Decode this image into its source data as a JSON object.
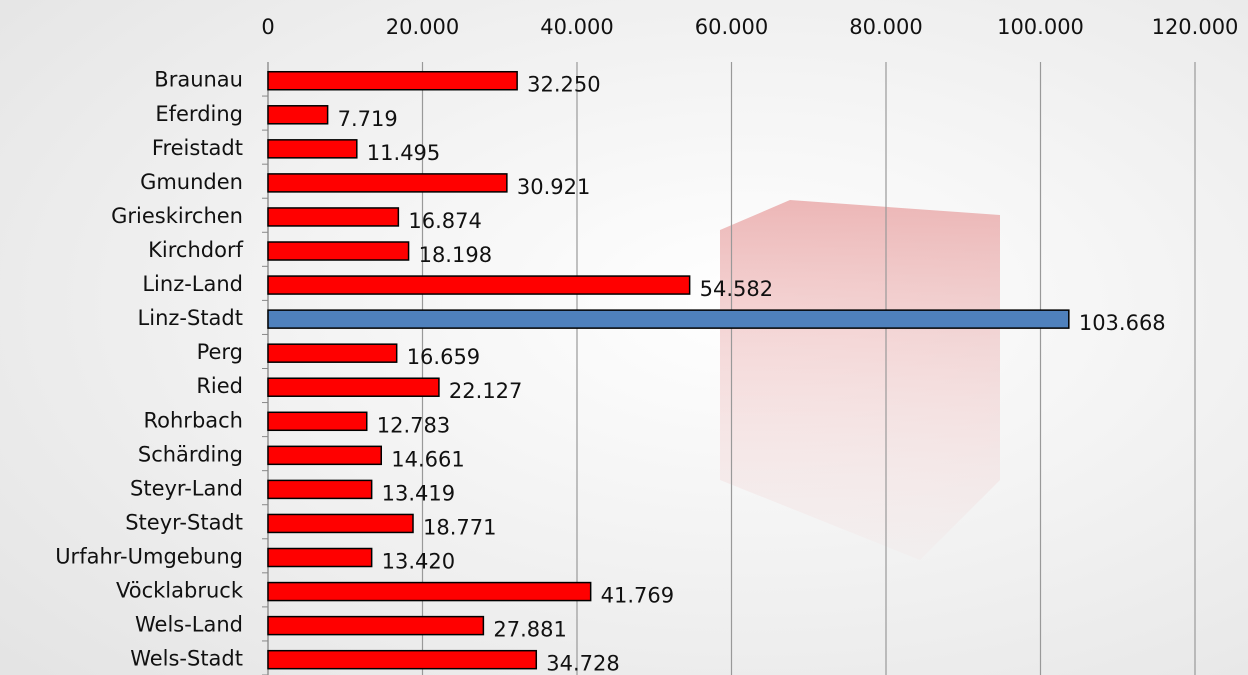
{
  "chart_data": {
    "type": "bar",
    "orientation": "horizontal",
    "categories": [
      "Braunau",
      "Eferding",
      "Freistadt",
      "Gmunden",
      "Grieskirchen",
      "Kirchdorf",
      "Linz-Land",
      "Linz-Stadt",
      "Perg",
      "Ried",
      "Rohrbach",
      "Schärding",
      "Steyr-Land",
      "Steyr-Stadt",
      "Urfahr-Umgebung",
      "Vöcklabruck",
      "Wels-Land",
      "Wels-Stadt"
    ],
    "values": [
      32250,
      7719,
      11495,
      30921,
      16874,
      18198,
      54582,
      103668,
      16659,
      22127,
      12783,
      14661,
      13419,
      18771,
      13420,
      41769,
      27881,
      34728
    ],
    "value_labels": [
      "32.250",
      "7.719",
      "11.495",
      "30.921",
      "16.874",
      "18.198",
      "54.582",
      "103.668",
      "16.659",
      "22.127",
      "12.783",
      "14.661",
      "13.419",
      "18.771",
      "13.420",
      "41.769",
      "27.881",
      "34.728"
    ],
    "colors": [
      "#ff0000",
      "#ff0000",
      "#ff0000",
      "#ff0000",
      "#ff0000",
      "#ff0000",
      "#ff0000",
      "#4f81bd",
      "#ff0000",
      "#ff0000",
      "#ff0000",
      "#ff0000",
      "#ff0000",
      "#ff0000",
      "#ff0000",
      "#ff0000",
      "#ff0000",
      "#ff0000"
    ],
    "xlim": [
      0,
      120000
    ],
    "xticks": [
      0,
      {
        "value": 20000,
        "label": "20.000"
      },
      {
        "value": 40000,
        "label": "40.000"
      },
      {
        "value": 60000,
        "label": "60.000"
      },
      {
        "value": 80000,
        "label": "80.000"
      },
      {
        "value": 100000,
        "label": "100.000"
      },
      {
        "value": 120000,
        "label": "120.000"
      }
    ],
    "grid": true
  }
}
